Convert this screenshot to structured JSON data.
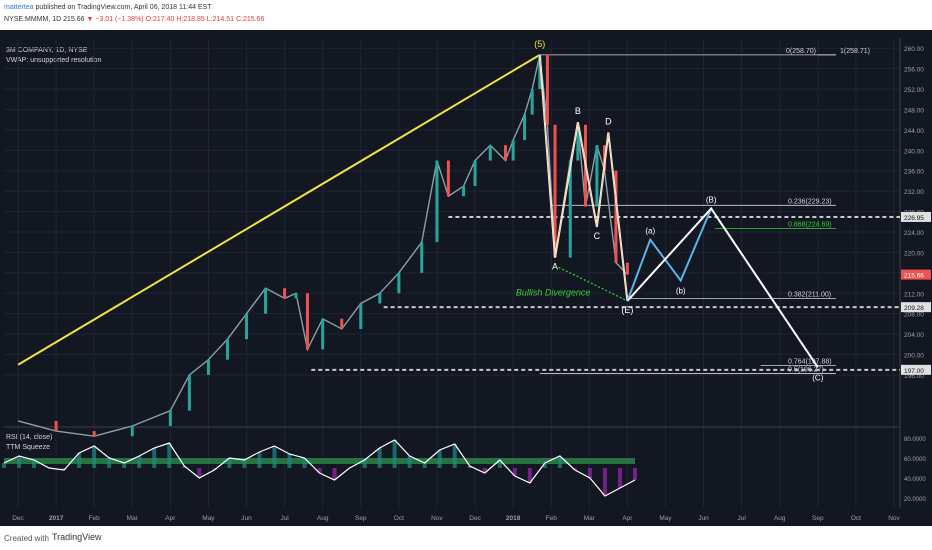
{
  "header": {
    "author": "mattertea",
    "published": "published on TradingView.com, April 06, 2018 11:44 EST",
    "symbol": "NYSE:MMMM, 1D",
    "price": "215.66",
    "change": "▼ −3.01 (−1.38%)",
    "ohlc_o": "O:217.40",
    "ohlc_h": "H:218.85",
    "ohlc_l": "L:214.51",
    "ohlc_c": "C:215.66"
  },
  "footer": {
    "created_with": "Created with",
    "brand": "TradingView"
  },
  "colors": {
    "background": "#131722",
    "up": "#26a69a",
    "down": "#ef5350",
    "trend": "#f0e442",
    "wave": "#ffffff",
    "wave_alt": "#5ab4e6",
    "orange": "#f5b478",
    "green_text": "#3ad13a"
  },
  "chart_data": {
    "type": "line",
    "title": "3M COMPANY, 1D, NYSE",
    "subtitle": "VWAP: unsupported resolution",
    "price_axis": {
      "ylim": [
        186,
        262
      ],
      "ticks": [
        "260.00",
        "256.00",
        "252.00",
        "248.00",
        "244.00",
        "240.00",
        "236.00",
        "232.00",
        "228.00",
        "224.00",
        "220.00",
        "216.00",
        "212.00",
        "208.00",
        "204.00",
        "200.00",
        "196.00"
      ],
      "badges": [
        {
          "label": "226.95",
          "value": 226.95
        },
        {
          "label": "215.66",
          "value": 215.66
        },
        {
          "label": "209.28",
          "value": 209.28
        },
        {
          "label": "197.00",
          "value": 197.0
        }
      ]
    },
    "time_axis": {
      "labels": [
        "Dec",
        "2017",
        "Feb",
        "Mar",
        "Apr",
        "May",
        "Jun",
        "Jul",
        "Aug",
        "Sep",
        "Oct",
        "Nov",
        "Dec",
        "2018",
        "Feb",
        "Mar",
        "Apr",
        "May",
        "Jun",
        "Jul",
        "Aug",
        "Sep",
        "Oct",
        "Nov"
      ]
    },
    "price_series": [
      {
        "t": 0.0,
        "v": 187
      },
      {
        "t": 1.0,
        "v": 185
      },
      {
        "t": 2.0,
        "v": 184
      },
      {
        "t": 3.0,
        "v": 186
      },
      {
        "t": 4.0,
        "v": 189
      },
      {
        "t": 4.5,
        "v": 196
      },
      {
        "t": 5.0,
        "v": 199
      },
      {
        "t": 5.5,
        "v": 203
      },
      {
        "t": 6.0,
        "v": 208
      },
      {
        "t": 6.5,
        "v": 213
      },
      {
        "t": 7.0,
        "v": 211
      },
      {
        "t": 7.3,
        "v": 212
      },
      {
        "t": 7.6,
        "v": 201
      },
      {
        "t": 8.0,
        "v": 207
      },
      {
        "t": 8.5,
        "v": 205
      },
      {
        "t": 9.0,
        "v": 210
      },
      {
        "t": 9.5,
        "v": 212
      },
      {
        "t": 10.0,
        "v": 216
      },
      {
        "t": 10.6,
        "v": 222
      },
      {
        "t": 11.0,
        "v": 238
      },
      {
        "t": 11.3,
        "v": 231
      },
      {
        "t": 11.7,
        "v": 233
      },
      {
        "t": 12.0,
        "v": 238
      },
      {
        "t": 12.4,
        "v": 241
      },
      {
        "t": 12.8,
        "v": 238
      },
      {
        "t": 13.0,
        "v": 242
      },
      {
        "t": 13.3,
        "v": 247
      },
      {
        "t": 13.5,
        "v": 252
      },
      {
        "t": 13.7,
        "v": 258.7
      },
      {
        "t": 13.9,
        "v": 245
      },
      {
        "t": 14.1,
        "v": 219
      },
      {
        "t": 14.5,
        "v": 238
      },
      {
        "t": 14.7,
        "v": 245
      },
      {
        "t": 14.9,
        "v": 229
      },
      {
        "t": 15.2,
        "v": 241
      },
      {
        "t": 15.4,
        "v": 236
      },
      {
        "t": 15.7,
        "v": 218
      },
      {
        "t": 16.0,
        "v": 215.66
      }
    ],
    "trendline": {
      "from": {
        "t": 0.0,
        "v": 198
      },
      "to": {
        "t": 13.7,
        "v": 258.7
      }
    },
    "elliott_main": [
      {
        "t": 13.7,
        "v": 258.7,
        "label": "(5)"
      },
      {
        "t": 14.1,
        "v": 219,
        "label": "A"
      },
      {
        "t": 14.7,
        "v": 245.5,
        "label": "B"
      },
      {
        "t": 15.2,
        "v": 225,
        "label": "C"
      },
      {
        "t": 15.5,
        "v": 243.5,
        "label": "D"
      },
      {
        "t": 16.0,
        "v": 210.5,
        "label": "(E)"
      }
    ],
    "elliott_projection": [
      {
        "t": 16.0,
        "v": 210.5,
        "label": ""
      },
      {
        "t": 16.6,
        "v": 222.5,
        "label": "(a)"
      },
      {
        "t": 17.4,
        "v": 214.5,
        "label": "(b)"
      },
      {
        "t": 18.2,
        "v": 228.6,
        "label": "(B)"
      },
      {
        "t": 21.0,
        "v": 197.5,
        "label": "(C)"
      }
    ],
    "fib_levels": [
      {
        "label": "0(258.70)",
        "value": 258.7,
        "from_t": 13.7,
        "to_t": 22.0
      },
      {
        "label": "1(258.71)",
        "value": 258.71,
        "from_t": 21.0,
        "to_t": 22.0
      },
      {
        "label": "0.236(229.23)",
        "value": 229.23,
        "from_t": 14.0,
        "to_t": 22.0
      },
      {
        "label": "0.868(224.69)",
        "value": 224.69,
        "from_t": 18.3,
        "to_t": 22.0
      },
      {
        "label": "0.382(211.00)",
        "value": 211.0,
        "from_t": 16.0,
        "to_t": 22.0
      },
      {
        "label": "0.764(197.88)",
        "value": 197.88,
        "from_t": 19.5,
        "to_t": 22.0
      },
      {
        "label": "0.5(196.27)",
        "value": 196.27,
        "from_t": 13.7,
        "to_t": 22.0
      }
    ],
    "support_lines": [
      {
        "value": 226.95,
        "from_t": 11.3
      },
      {
        "value": 209.28,
        "from_t": 9.6
      },
      {
        "value": 197.0,
        "from_t": 7.7
      }
    ],
    "annotation": {
      "text": "Bullish Divergence"
    },
    "rsi": {
      "label": "RSI (14, close)",
      "label2": "TTM Squeeze",
      "ticks": [
        "80.0000",
        "60.0000",
        "40.0000",
        "20.0000"
      ],
      "ylim": [
        10,
        90
      ],
      "values": [
        55,
        62,
        58,
        50,
        48,
        65,
        72,
        60,
        55,
        62,
        70,
        75,
        52,
        40,
        48,
        60,
        58,
        66,
        72,
        64,
        60,
        45,
        38,
        50,
        58,
        70,
        78,
        62,
        55,
        68,
        74,
        52,
        45,
        58,
        42,
        35,
        55,
        62,
        48,
        40,
        22,
        30,
        38
      ]
    }
  }
}
